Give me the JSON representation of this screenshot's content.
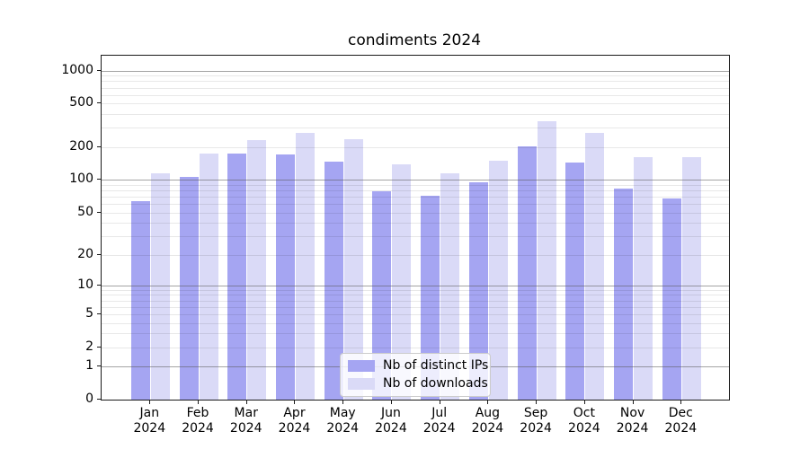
{
  "title": "condiments 2024",
  "chart_data": {
    "type": "bar",
    "title": "condiments 2024",
    "xlabel": "",
    "ylabel": "",
    "yscale": "log1p",
    "ylim": [
      0,
      1370
    ],
    "grid": true,
    "legend_position": "lower center",
    "categories": [
      {
        "month": "Jan",
        "year": "2024"
      },
      {
        "month": "Feb",
        "year": "2024"
      },
      {
        "month": "Mar",
        "year": "2024"
      },
      {
        "month": "Apr",
        "year": "2024"
      },
      {
        "month": "May",
        "year": "2024"
      },
      {
        "month": "Jun",
        "year": "2024"
      },
      {
        "month": "Jul",
        "year": "2024"
      },
      {
        "month": "Aug",
        "year": "2024"
      },
      {
        "month": "Sep",
        "year": "2024"
      },
      {
        "month": "Oct",
        "year": "2024"
      },
      {
        "month": "Nov",
        "year": "2024"
      },
      {
        "month": "Dec",
        "year": "2024"
      }
    ],
    "series": [
      {
        "name": "Nb of distinct IPs",
        "color": "#a5a5f2",
        "values": [
          64,
          107,
          175,
          170,
          146,
          79,
          72,
          95,
          205,
          143,
          83,
          67
        ]
      },
      {
        "name": "Nb of downloads",
        "color": "#dadaf7",
        "values": [
          114,
          173,
          232,
          271,
          237,
          138,
          115,
          151,
          345,
          270,
          162,
          162
        ]
      }
    ],
    "y_ticks": [
      {
        "value": 0,
        "label": "0"
      },
      {
        "value": 1,
        "label": "1"
      },
      {
        "value": 2,
        "label": "2"
      },
      {
        "value": 5,
        "label": "5"
      },
      {
        "value": 10,
        "label": "10"
      },
      {
        "value": 20,
        "label": "20"
      },
      {
        "value": 50,
        "label": "50"
      },
      {
        "value": 100,
        "label": "100"
      },
      {
        "value": 200,
        "label": "200"
      },
      {
        "value": 500,
        "label": "500"
      },
      {
        "value": 1000,
        "label": "1000"
      }
    ],
    "y_major_gridlines": [
      1,
      10,
      100,
      1000
    ],
    "y_minor_gridlines": [
      2,
      3,
      4,
      5,
      6,
      7,
      8,
      9,
      20,
      30,
      40,
      50,
      60,
      70,
      80,
      90,
      200,
      300,
      400,
      500,
      600,
      700,
      800,
      900
    ]
  }
}
